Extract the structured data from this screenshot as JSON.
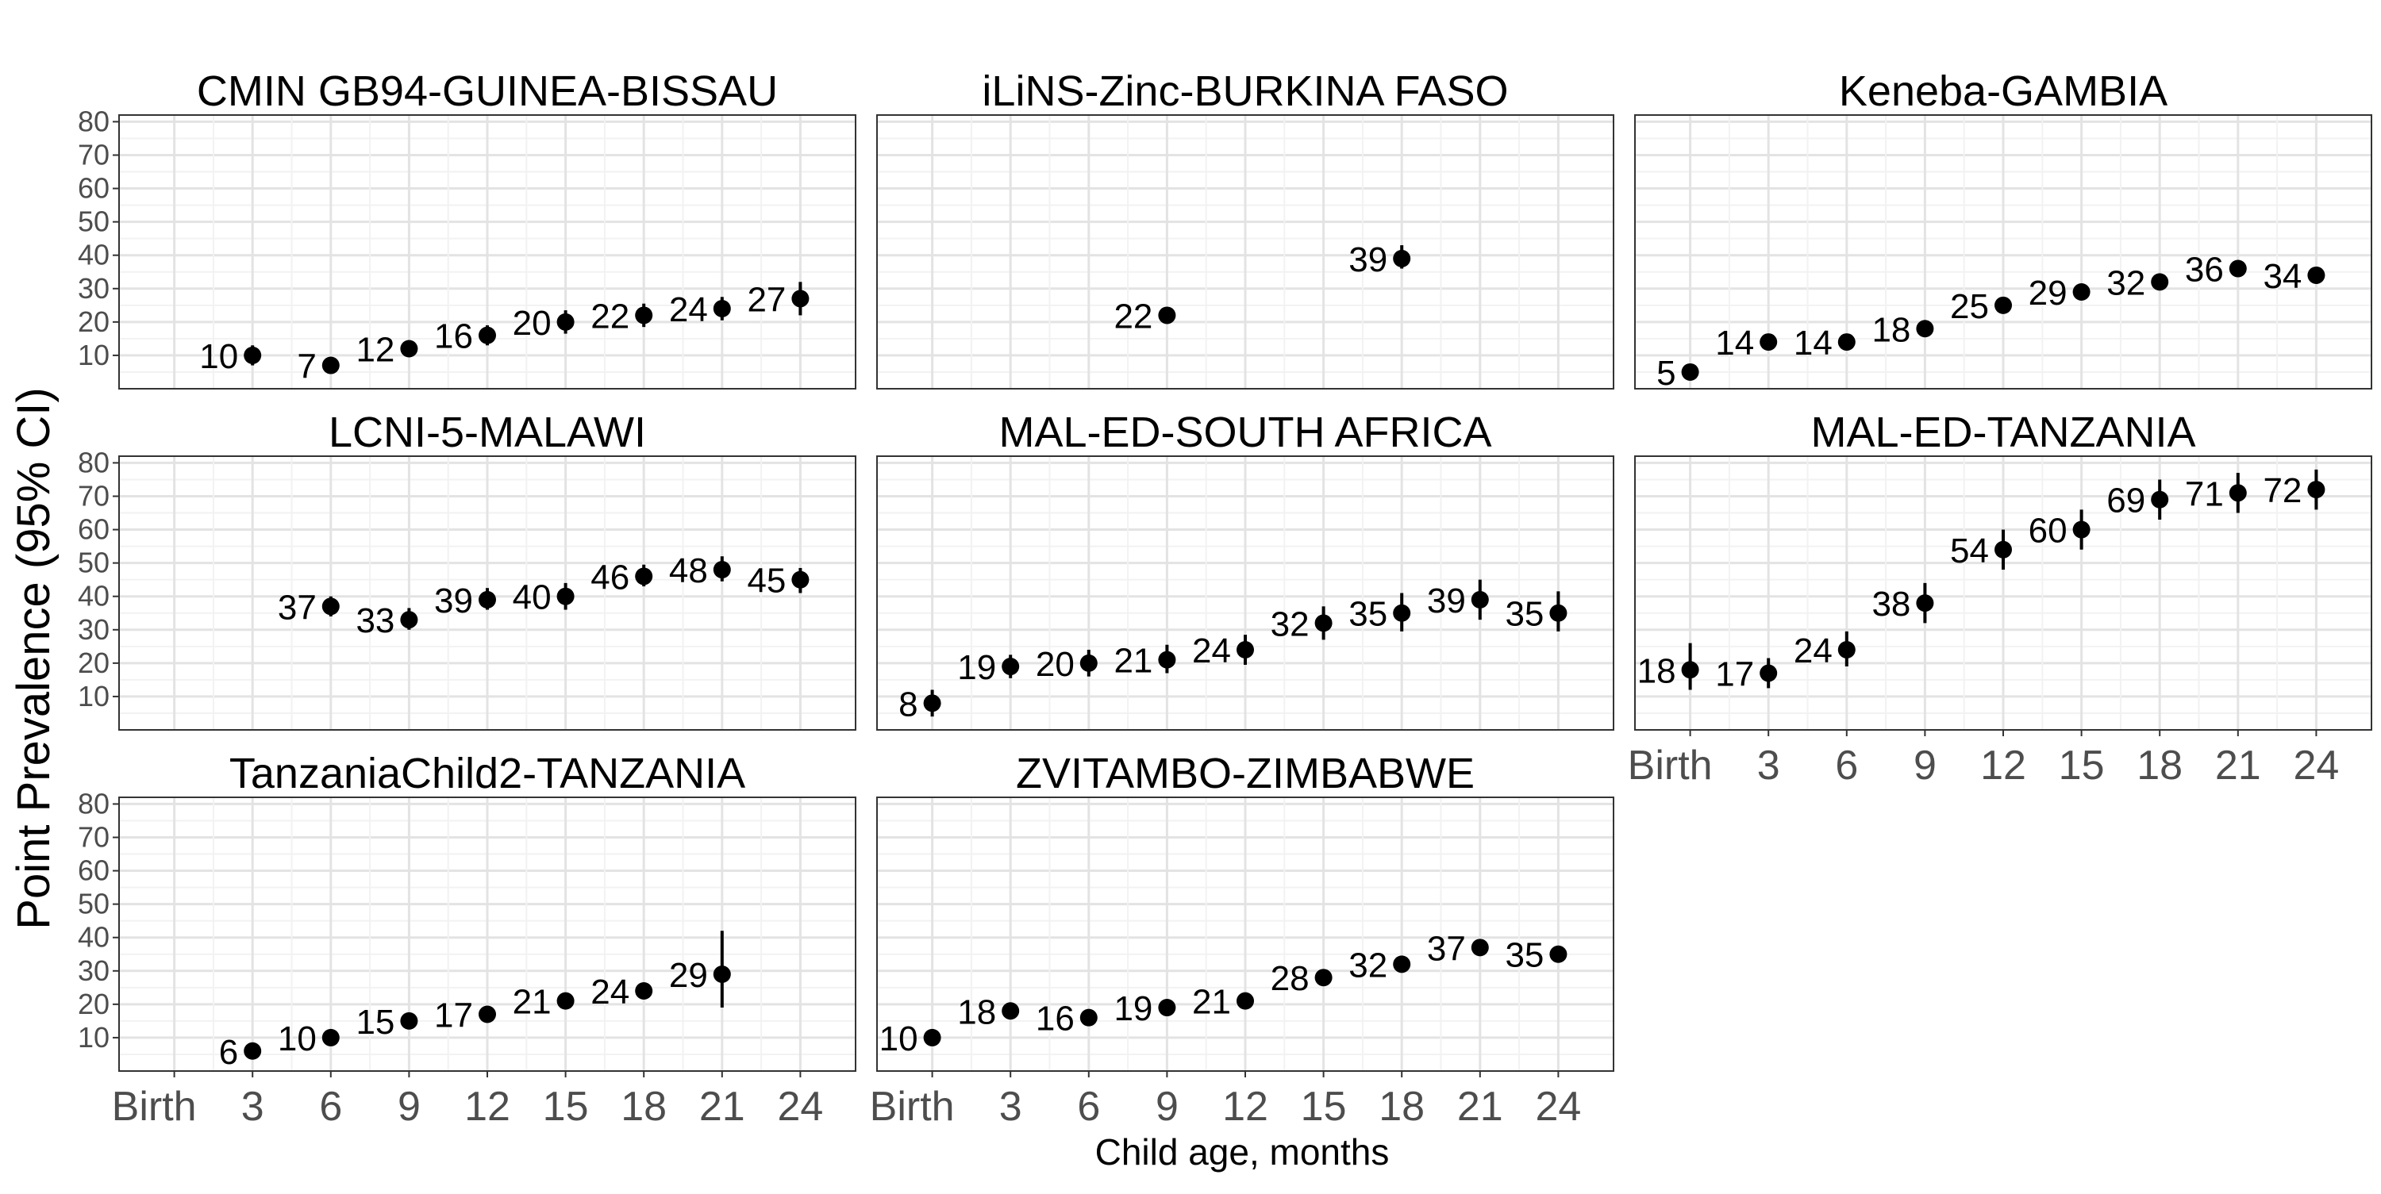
{
  "chart_data": {
    "type": "scatter",
    "ylabel": "Point Prevalence (95% CI)",
    "xlabel": "Child age, months",
    "x_categories": [
      "Birth",
      "3",
      "6",
      "9",
      "12",
      "15",
      "18",
      "21",
      "24"
    ],
    "y_ticks": [
      10,
      20,
      30,
      40,
      50,
      60,
      70,
      80
    ],
    "ylim": [
      0,
      82
    ],
    "grid": true,
    "panels": [
      {
        "title": "CMIN GB94-GUINEA-BISSAU",
        "points": [
          {
            "x": "3",
            "y": 10,
            "lo": 7,
            "hi": 13,
            "label": "10"
          },
          {
            "x": "6",
            "y": 7,
            "lo": 5,
            "hi": 9,
            "label": "7"
          },
          {
            "x": "9",
            "y": 12,
            "lo": 9.5,
            "hi": 14.5,
            "label": "12"
          },
          {
            "x": "12",
            "y": 16,
            "lo": 13,
            "hi": 19,
            "label": "16"
          },
          {
            "x": "15",
            "y": 20,
            "lo": 16.5,
            "hi": 23.5,
            "label": "20"
          },
          {
            "x": "18",
            "y": 22,
            "lo": 18.5,
            "hi": 25.5,
            "label": "22"
          },
          {
            "x": "21",
            "y": 24,
            "lo": 20.5,
            "hi": 27.5,
            "label": "24"
          },
          {
            "x": "24",
            "y": 27,
            "lo": 22,
            "hi": 32,
            "label": "27"
          }
        ]
      },
      {
        "title": "iLiNS-Zinc-BURKINA FASO",
        "points": [
          {
            "x": "9",
            "y": 22,
            "lo": 20,
            "hi": 24,
            "label": "22"
          },
          {
            "x": "18",
            "y": 39,
            "lo": 36,
            "hi": 43,
            "label": "39"
          }
        ]
      },
      {
        "title": "Keneba-GAMBIA",
        "points": [
          {
            "x": "Birth",
            "y": 5,
            "lo": 4,
            "hi": 6,
            "label": "5"
          },
          {
            "x": "3",
            "y": 14,
            "lo": 12.5,
            "hi": 15.5,
            "label": "14"
          },
          {
            "x": "6",
            "y": 14,
            "lo": 12.5,
            "hi": 15.5,
            "label": "14"
          },
          {
            "x": "9",
            "y": 18,
            "lo": 16.5,
            "hi": 19.5,
            "label": "18"
          },
          {
            "x": "12",
            "y": 25,
            "lo": 23,
            "hi": 27,
            "label": "25"
          },
          {
            "x": "15",
            "y": 29,
            "lo": 27,
            "hi": 31,
            "label": "29"
          },
          {
            "x": "18",
            "y": 32,
            "lo": 30,
            "hi": 34,
            "label": "32"
          },
          {
            "x": "21",
            "y": 36,
            "lo": 34,
            "hi": 38,
            "label": "36"
          },
          {
            "x": "24",
            "y": 34,
            "lo": 32,
            "hi": 36,
            "label": "34"
          }
        ]
      },
      {
        "title": "LCNI-5-MALAWI",
        "points": [
          {
            "x": "6",
            "y": 37,
            "lo": 34,
            "hi": 40,
            "label": "37"
          },
          {
            "x": "9",
            "y": 33,
            "lo": 30,
            "hi": 36.5,
            "label": "33"
          },
          {
            "x": "12",
            "y": 39,
            "lo": 36,
            "hi": 42.5,
            "label": "39"
          },
          {
            "x": "15",
            "y": 40,
            "lo": 36,
            "hi": 44,
            "label": "40"
          },
          {
            "x": "18",
            "y": 46,
            "lo": 43,
            "hi": 49.5,
            "label": "46"
          },
          {
            "x": "21",
            "y": 48,
            "lo": 44.5,
            "hi": 52,
            "label": "48"
          },
          {
            "x": "24",
            "y": 45,
            "lo": 41,
            "hi": 48.5,
            "label": "45"
          }
        ]
      },
      {
        "title": "MAL-ED-SOUTH AFRICA",
        "points": [
          {
            "x": "Birth",
            "y": 8,
            "lo": 4,
            "hi": 12,
            "label": "8"
          },
          {
            "x": "3",
            "y": 19,
            "lo": 15.5,
            "hi": 22.5,
            "label": "19"
          },
          {
            "x": "6",
            "y": 20,
            "lo": 16,
            "hi": 24,
            "label": "20"
          },
          {
            "x": "9",
            "y": 21,
            "lo": 17,
            "hi": 25.5,
            "label": "21"
          },
          {
            "x": "12",
            "y": 24,
            "lo": 19.5,
            "hi": 28.5,
            "label": "24"
          },
          {
            "x": "15",
            "y": 32,
            "lo": 27,
            "hi": 37,
            "label": "32"
          },
          {
            "x": "18",
            "y": 35,
            "lo": 29.5,
            "hi": 41,
            "label": "35"
          },
          {
            "x": "21",
            "y": 39,
            "lo": 33,
            "hi": 45,
            "label": "39"
          },
          {
            "x": "24",
            "y": 35,
            "lo": 29.5,
            "hi": 41.5,
            "label": "35"
          }
        ]
      },
      {
        "title": "MAL-ED-TANZANIA",
        "points": [
          {
            "x": "Birth",
            "y": 18,
            "lo": 12,
            "hi": 26,
            "label": "18"
          },
          {
            "x": "3",
            "y": 17,
            "lo": 12.5,
            "hi": 21.5,
            "label": "17"
          },
          {
            "x": "6",
            "y": 24,
            "lo": 19,
            "hi": 29.5,
            "label": "24"
          },
          {
            "x": "9",
            "y": 38,
            "lo": 32,
            "hi": 44,
            "label": "38"
          },
          {
            "x": "12",
            "y": 54,
            "lo": 48,
            "hi": 60,
            "label": "54"
          },
          {
            "x": "15",
            "y": 60,
            "lo": 54,
            "hi": 66,
            "label": "60"
          },
          {
            "x": "18",
            "y": 69,
            "lo": 63,
            "hi": 75,
            "label": "69"
          },
          {
            "x": "21",
            "y": 71,
            "lo": 65,
            "hi": 77,
            "label": "71"
          },
          {
            "x": "24",
            "y": 72,
            "lo": 66,
            "hi": 78,
            "label": "72"
          }
        ]
      },
      {
        "title": "TanzaniaChild2-TANZANIA",
        "points": [
          {
            "x": "3",
            "y": 6,
            "lo": 5,
            "hi": 7,
            "label": "6"
          },
          {
            "x": "6",
            "y": 10,
            "lo": 9,
            "hi": 11,
            "label": "10"
          },
          {
            "x": "9",
            "y": 15,
            "lo": 14,
            "hi": 16,
            "label": "15"
          },
          {
            "x": "12",
            "y": 17,
            "lo": 15.5,
            "hi": 18.5,
            "label": "17"
          },
          {
            "x": "15",
            "y": 21,
            "lo": 19.5,
            "hi": 22.5,
            "label": "21"
          },
          {
            "x": "18",
            "y": 24,
            "lo": 22.5,
            "hi": 25.5,
            "label": "24"
          },
          {
            "x": "21",
            "y": 29,
            "lo": 19,
            "hi": 42,
            "label": "29"
          }
        ]
      },
      {
        "title": "ZVITAMBO-ZIMBABWE",
        "points": [
          {
            "x": "Birth",
            "y": 10,
            "lo": 9,
            "hi": 11,
            "label": "10"
          },
          {
            "x": "3",
            "y": 18,
            "lo": 17,
            "hi": 19,
            "label": "18"
          },
          {
            "x": "6",
            "y": 16,
            "lo": 15,
            "hi": 17,
            "label": "16"
          },
          {
            "x": "9",
            "y": 19,
            "lo": 18,
            "hi": 20,
            "label": "19"
          },
          {
            "x": "12",
            "y": 21,
            "lo": 20,
            "hi": 22,
            "label": "21"
          },
          {
            "x": "15",
            "y": 28,
            "lo": 27,
            "hi": 29,
            "label": "28"
          },
          {
            "x": "18",
            "y": 32,
            "lo": 31,
            "hi": 33,
            "label": "32"
          },
          {
            "x": "21",
            "y": 37,
            "lo": 36,
            "hi": 38,
            "label": "37"
          },
          {
            "x": "24",
            "y": 35,
            "lo": 34,
            "hi": 36,
            "label": "35"
          }
        ]
      }
    ]
  }
}
